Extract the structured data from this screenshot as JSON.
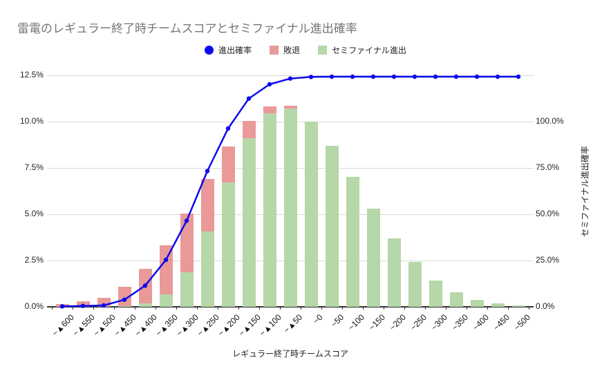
{
  "title": "雷電のレギュラー終了時チームスコアとセミファイナル進出確率",
  "legend": [
    {
      "label": "進出確率",
      "color": "#0b0bee",
      "marker": "circle"
    },
    {
      "label": "敗退",
      "color": "#ea9999",
      "marker": "square"
    },
    {
      "label": "セミファイナル進出",
      "color": "#b6d7a8",
      "marker": "square"
    }
  ],
  "chart_data": {
    "type": "combo-stacked-bar-line",
    "title": "雷電のレギュラー終了時チームスコアとセミファイナル進出確率",
    "xlabel": "レギュラー終了時チームスコア",
    "categories": [
      "~▲600",
      "~▲550",
      "~▲500",
      "~▲450",
      "~▲400",
      "~▲350",
      "~▲300",
      "~▲250",
      "~▲200",
      "~▲150",
      "~▲100",
      "~▲50",
      "~0",
      "~50",
      "~100",
      "~150",
      "~200",
      "~250",
      "~300",
      "~350",
      "~400",
      "~450",
      "~500"
    ],
    "series": [
      {
        "name": "セミファイナル進出",
        "type": "bar",
        "stack": "bottom",
        "axis": "left",
        "color": "#b6d7a8",
        "unit": "%",
        "values": [
          0,
          0,
          0,
          0.04,
          0.17,
          0.68,
          1.87,
          4.05,
          6.7,
          9.1,
          10.45,
          10.72,
          10.0,
          8.7,
          7.0,
          5.3,
          3.68,
          2.43,
          1.41,
          0.78,
          0.39,
          0.2,
          0.07
        ]
      },
      {
        "name": "敗退",
        "type": "bar",
        "stack": "top",
        "axis": "left",
        "color": "#ea9999",
        "unit": "%",
        "values": [
          0.15,
          0.28,
          0.5,
          1.06,
          1.88,
          2.65,
          3.15,
          2.85,
          1.95,
          0.95,
          0.37,
          0.12,
          0,
          0,
          0,
          0,
          0,
          0,
          0,
          0,
          0,
          0,
          0
        ]
      },
      {
        "name": "進出確率",
        "type": "line",
        "axis": "right",
        "color": "#0b0bee",
        "unit": "%",
        "values": [
          0.2,
          0.4,
          0.6,
          3.1,
          9.2,
          20.4,
          37.4,
          59.0,
          77.5,
          90.5,
          96.7,
          99.2,
          99.9,
          100,
          100,
          100,
          100,
          100,
          100,
          100,
          100,
          100,
          100
        ]
      }
    ],
    "left_axis": {
      "min": 0,
      "max": 12.5,
      "ticks": [
        "0.0%",
        "2.5%",
        "5.0%",
        "7.5%",
        "10.0%",
        "12.5%"
      ]
    },
    "right_axis": {
      "title": "セミファイナル進出確率",
      "min": 0,
      "max": 100,
      "ticks": [
        "0.0%",
        "25.0%",
        "50.0%",
        "75.0%",
        "100.0%"
      ]
    },
    "grid": "horizontal-only",
    "legend_position": "top-center",
    "colors": {
      "background": "#ffffff",
      "gridline": "#d9d9d9",
      "axis_line": "#333333",
      "title_text": "#757575",
      "label_text": "#222222"
    }
  }
}
